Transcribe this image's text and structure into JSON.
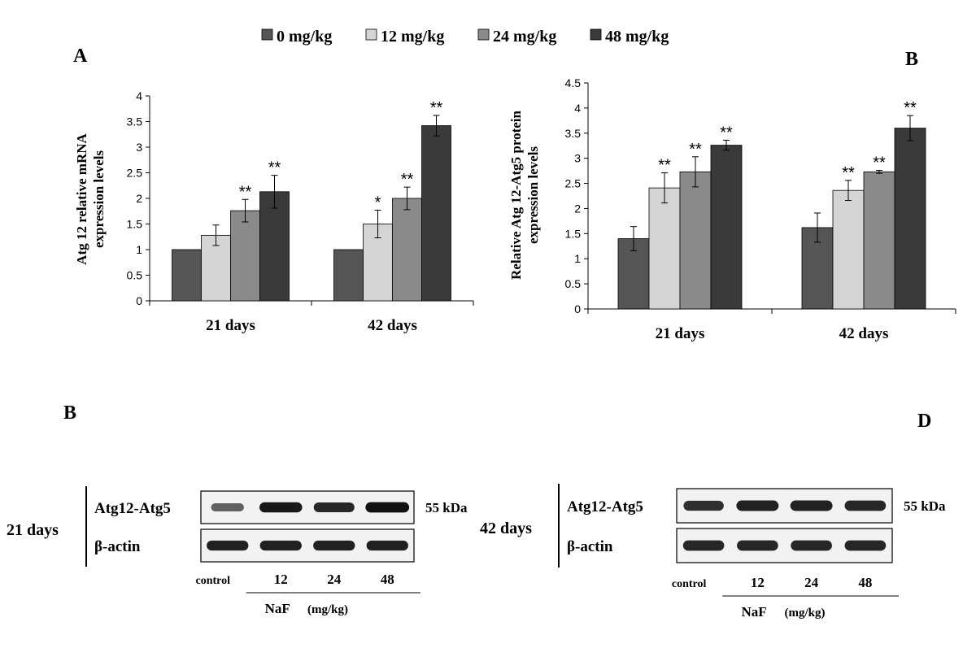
{
  "legend": [
    {
      "label": "0 mg/kg",
      "color": "#555555"
    },
    {
      "label": "12 mg/kg",
      "color": "#d4d4d4"
    },
    {
      "label": "24 mg/kg",
      "color": "#8a8a8a"
    },
    {
      "label": "48 mg/kg",
      "color": "#3a3a3a"
    }
  ],
  "chart_data": [
    {
      "panel_label": "A",
      "type": "bar",
      "categories": [
        "21 days",
        "42 days"
      ],
      "ylabel_lines": [
        "Atg 12 relative mRNA",
        "expression levels"
      ],
      "ylim": [
        0,
        4
      ],
      "yticks": [
        "0",
        "0.5",
        "1",
        "1.5",
        "2",
        "2.5",
        "3",
        "3.5",
        "4"
      ],
      "series": [
        {
          "name": "0 mg/kg",
          "values": [
            1.0,
            1.0
          ],
          "errors": [
            0,
            0
          ],
          "sig": [
            "",
            ""
          ]
        },
        {
          "name": "12 mg/kg",
          "values": [
            1.28,
            1.5
          ],
          "errors": [
            0.2,
            0.27
          ],
          "sig": [
            "",
            "*"
          ]
        },
        {
          "name": "24 mg/kg",
          "values": [
            1.76,
            2.0
          ],
          "errors": [
            0.22,
            0.22
          ],
          "sig": [
            "**",
            "**"
          ]
        },
        {
          "name": "48 mg/kg",
          "values": [
            2.13,
            3.42
          ],
          "errors": [
            0.32,
            0.2
          ],
          "sig": [
            "**",
            "**"
          ]
        }
      ]
    },
    {
      "panel_label": "B",
      "type": "bar",
      "categories": [
        "21 days",
        "42 days"
      ],
      "ylabel_lines": [
        "Relative Atg 12-Atg5 protein",
        "expression levels"
      ],
      "ylim": [
        0,
        4.5
      ],
      "yticks": [
        "0",
        "0.5",
        "1",
        "1.5",
        "2",
        "2.5",
        "3",
        "3.5",
        "4",
        "4.5"
      ],
      "series": [
        {
          "name": "0 mg/kg",
          "values": [
            1.4,
            1.62
          ],
          "errors": [
            0.24,
            0.29
          ],
          "sig": [
            "",
            ""
          ]
        },
        {
          "name": "12 mg/kg",
          "values": [
            2.41,
            2.36
          ],
          "errors": [
            0.3,
            0.2
          ],
          "sig": [
            "**",
            "**"
          ]
        },
        {
          "name": "24 mg/kg",
          "values": [
            2.73,
            2.73
          ],
          "errors": [
            0.3,
            0.03
          ],
          "sig": [
            "**",
            "**"
          ]
        },
        {
          "name": "48 mg/kg",
          "values": [
            3.26,
            3.6
          ],
          "errors": [
            0.1,
            0.25
          ],
          "sig": [
            "**",
            "**"
          ]
        }
      ]
    }
  ],
  "blots": [
    {
      "panel_label": "B",
      "group_label": "21 days",
      "rows": [
        {
          "label": "Atg12-Atg5",
          "size": "55 kDa",
          "intensities": [
            0.45,
            0.95,
            0.85,
            1.0
          ]
        },
        {
          "label": "β-actin",
          "size": "",
          "intensities": [
            0.9,
            0.9,
            0.9,
            0.9
          ]
        }
      ],
      "lanes": [
        "control",
        "12",
        "24",
        "48"
      ],
      "treatment": "NaF",
      "unit": "(mg/kg)"
    },
    {
      "panel_label": "D",
      "group_label": "42 days",
      "rows": [
        {
          "label": "Atg12-Atg5",
          "size": "55 kDa",
          "intensities": [
            0.8,
            0.9,
            0.9,
            0.85
          ]
        },
        {
          "label": "β-actin",
          "size": "",
          "intensities": [
            0.85,
            0.85,
            0.85,
            0.85
          ]
        }
      ],
      "lanes": [
        "control",
        "12",
        "24",
        "48"
      ],
      "treatment": "NaF",
      "unit": "(mg/kg)"
    }
  ]
}
